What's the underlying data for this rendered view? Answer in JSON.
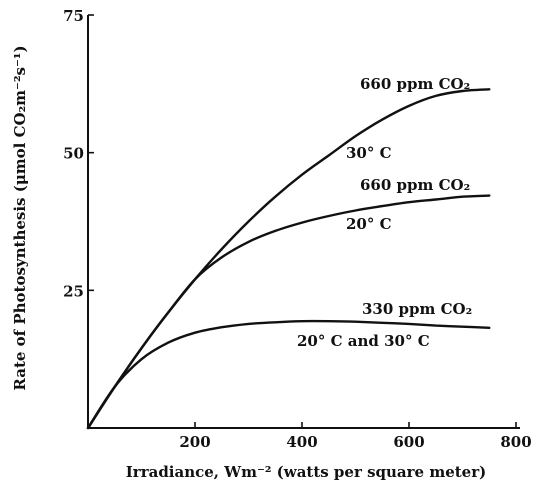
{
  "chart_data": {
    "type": "line",
    "xlabel": "Irradiance, Wm⁻² (watts per square meter)",
    "ylabel": "Rate of Photosynthesis (μmol CO₂m⁻²s⁻¹)",
    "xlim": [
      0,
      800
    ],
    "ylim": [
      0,
      75
    ],
    "x_ticks": [
      "200",
      "400",
      "600",
      "800"
    ],
    "y_ticks": [
      "25",
      "50",
      "75"
    ],
    "x_tick_values": [
      200,
      400,
      600,
      800
    ],
    "y_tick_values": [
      25,
      50,
      75
    ],
    "grid": false,
    "series": [
      {
        "label_lines": [
          "660 ppm CO₂",
          "30° C"
        ],
        "x": [
          0,
          50,
          100,
          150,
          200,
          250,
          300,
          350,
          400,
          450,
          500,
          550,
          600,
          650,
          700,
          750
        ],
        "y": [
          0,
          7.5,
          14.5,
          21,
          27,
          32.5,
          37.5,
          42,
          46,
          49.5,
          53,
          56,
          58.5,
          60.3,
          61.2,
          61.5
        ]
      },
      {
        "label_lines": [
          "660 ppm CO₂",
          "20° C"
        ],
        "x": [
          0,
          50,
          100,
          150,
          200,
          250,
          300,
          350,
          400,
          450,
          500,
          550,
          600,
          650,
          700,
          750
        ],
        "y": [
          0,
          7.5,
          14.5,
          21,
          27,
          31,
          33.8,
          35.8,
          37.3,
          38.5,
          39.5,
          40.3,
          41,
          41.5,
          42,
          42.2
        ]
      },
      {
        "label_lines": [
          "330 ppm CO₂",
          "20° C and 30° C"
        ],
        "x": [
          0,
          50,
          100,
          150,
          200,
          250,
          300,
          350,
          400,
          450,
          500,
          550,
          600,
          650,
          700,
          750
        ],
        "y": [
          0,
          7.5,
          12.5,
          15.5,
          17.3,
          18.3,
          18.9,
          19.2,
          19.4,
          19.4,
          19.3,
          19.1,
          18.9,
          18.6,
          18.4,
          18.2
        ]
      }
    ]
  }
}
